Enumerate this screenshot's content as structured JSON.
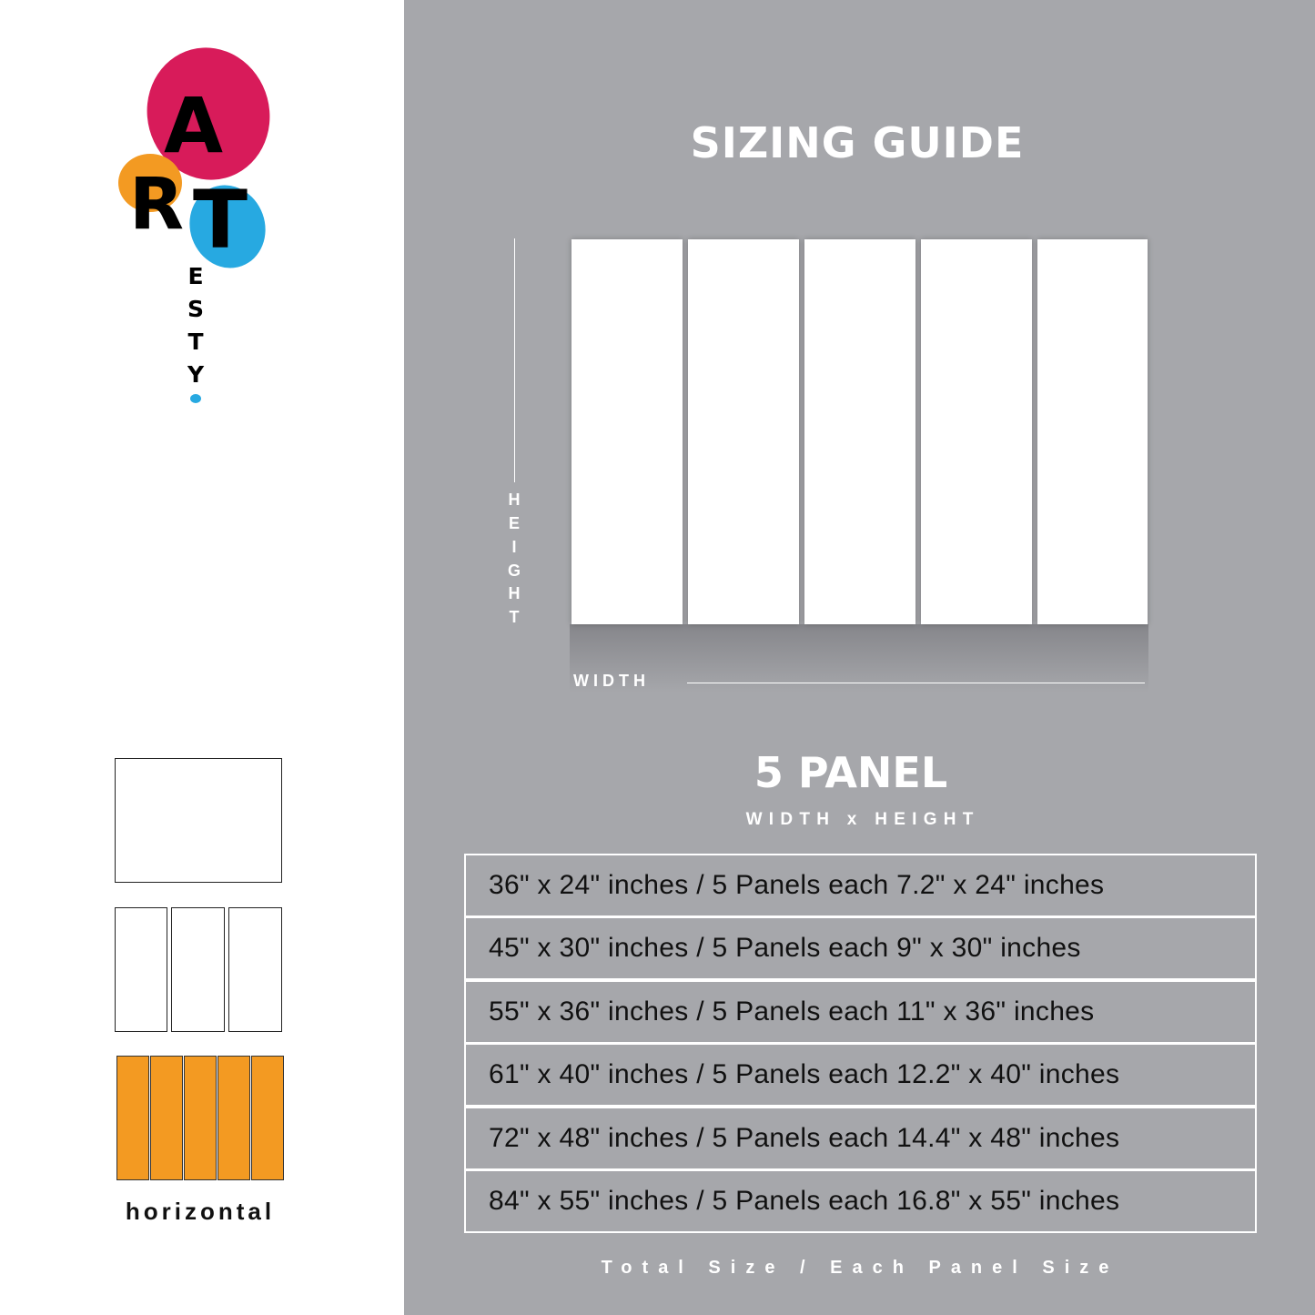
{
  "logo": {
    "letters": [
      "A",
      "R",
      "T"
    ],
    "sub_letters": [
      "E",
      "S",
      "T",
      "Y"
    ],
    "text": "ARTESTY",
    "colors": {
      "pink": "#d81b5a",
      "orange": "#f39a22",
      "blue": "#27a9e1"
    }
  },
  "header": {
    "title": "SIZING GUIDE"
  },
  "diagram": {
    "height_label": [
      "H",
      "E",
      "I",
      "G",
      "H",
      "T"
    ],
    "width_label": "W I D T H",
    "panel_count": 5
  },
  "section": {
    "title": "5 PANEL",
    "subtitle": "W I D T H   x   H E I G H T"
  },
  "sizes": [
    "36\" x 24\" inches / 5 Panels each 7.2\" x 24\" inches",
    "45\" x 30\" inches / 5 Panels each 9\" x 30\" inches",
    "55\" x 36\" inches / 5 Panels each 11\" x 36\" inches",
    "61\" x 40\" inches / 5 Panels each 12.2\" x 40\" inches",
    "72\" x 48\" inches / 5 Panels each 14.4\" x 48\" inches",
    "84\" x 55\" inches / 5 Panels each 16.8\" x 55\" inches"
  ],
  "footer": {
    "caption": "Total Size / Each Panel Size"
  },
  "layouts": {
    "selected": "horizontal",
    "label": "horizontal",
    "accent": "#f39a22"
  }
}
